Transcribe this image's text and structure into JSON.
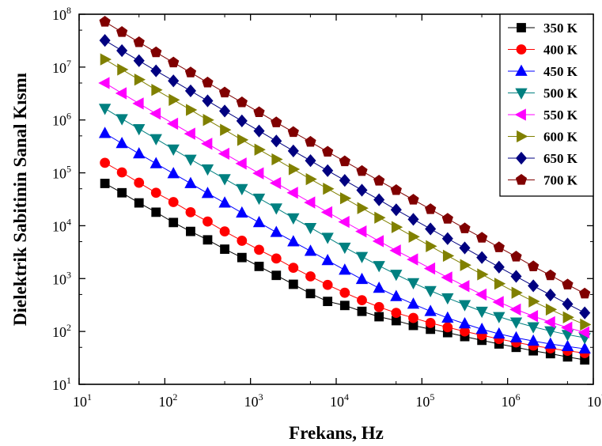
{
  "chart_data": {
    "type": "scatter",
    "title": "",
    "xlabel": "Frekans, Hz",
    "ylabel": "Dielektrik Sabitinin Sanal Kısmı",
    "x_scale": "log",
    "y_scale": "log",
    "xlim": [
      10,
      10000000
    ],
    "ylim": [
      10,
      100000000
    ],
    "x_ticks": [
      {
        "base": "10",
        "exp": "1"
      },
      {
        "base": "10",
        "exp": "2"
      },
      {
        "base": "10",
        "exp": "3"
      },
      {
        "base": "10",
        "exp": "4"
      },
      {
        "base": "10",
        "exp": "5"
      },
      {
        "base": "10",
        "exp": "6"
      },
      {
        "base": "10",
        "exp": "7"
      }
    ],
    "y_ticks": [
      {
        "base": "10",
        "exp": "1"
      },
      {
        "base": "10",
        "exp": "2"
      },
      {
        "base": "10",
        "exp": "3"
      },
      {
        "base": "10",
        "exp": "4"
      },
      {
        "base": "10",
        "exp": "5"
      },
      {
        "base": "10",
        "exp": "6"
      },
      {
        "base": "10",
        "exp": "7"
      },
      {
        "base": "10",
        "exp": "8"
      }
    ],
    "legend_position": "top-right",
    "x": [
      20,
      31.6,
      50,
      79,
      126,
      200,
      316,
      500,
      794,
      1259,
      2000,
      3162,
      5012,
      7943,
      12589,
      19953,
      31623,
      50119,
      79433,
      125893,
      199526,
      316228,
      501187,
      794328,
      1258925,
      1995262,
      3162278,
      5011872,
      7943282,
      12589254
    ],
    "series": [
      {
        "name": "350 K",
        "marker": "square",
        "color": "#000000",
        "values": [
          63000,
          42000,
          27000,
          18000,
          11500,
          7800,
          5400,
          3600,
          2500,
          1700,
          1150,
          780,
          520,
          370,
          310,
          240,
          190,
          160,
          130,
          110,
          95,
          80,
          68,
          58,
          50,
          43,
          38,
          33,
          29,
          26
        ]
      },
      {
        "name": "400 K",
        "marker": "circle",
        "color": "#ff0000",
        "values": [
          155000,
          102000,
          65000,
          42000,
          28000,
          18000,
          12000,
          7800,
          5200,
          3500,
          2400,
          1600,
          1100,
          760,
          540,
          390,
          290,
          225,
          180,
          145,
          120,
          100,
          85,
          72,
          62,
          54,
          48,
          43,
          39,
          36
        ]
      },
      {
        "name": "450 K",
        "marker": "triangle-up",
        "color": "#0000ff",
        "values": [
          560000,
          360000,
          230000,
          150000,
          97000,
          63000,
          41000,
          27000,
          17500,
          11500,
          7500,
          5000,
          3300,
          2200,
          1450,
          970,
          660,
          460,
          330,
          240,
          180,
          140,
          110,
          90,
          76,
          66,
          58,
          52,
          47,
          44
        ]
      },
      {
        "name": "500 K",
        "marker": "triangle-down",
        "color": "#008080",
        "values": [
          1650000,
          1050000,
          680000,
          440000,
          280000,
          180000,
          118000,
          77000,
          50000,
          33000,
          21500,
          14000,
          9200,
          6000,
          3900,
          2600,
          1750,
          1200,
          830,
          590,
          430,
          320,
          240,
          190,
          150,
          122,
          102,
          87,
          76,
          68
        ]
      },
      {
        "name": "550 K",
        "marker": "triangle-left",
        "color": "#ff00ff",
        "values": [
          5000000,
          3200000,
          2050000,
          1320000,
          850000,
          550000,
          355000,
          230000,
          150000,
          98000,
          64000,
          42000,
          27500,
          18000,
          11800,
          7800,
          5100,
          3400,
          2300,
          1550,
          1050,
          720,
          500,
          360,
          260,
          195,
          150,
          118,
          96,
          80
        ]
      },
      {
        "name": "600 K",
        "marker": "triangle-right",
        "color": "#808000",
        "values": [
          14000000,
          9000000,
          5800000,
          3700000,
          2400000,
          1550000,
          1000000,
          650000,
          420000,
          275000,
          180000,
          117000,
          76000,
          50000,
          33000,
          21500,
          14200,
          9400,
          6200,
          4100,
          2700,
          1800,
          1200,
          800,
          540,
          370,
          260,
          185,
          135,
          100
        ]
      },
      {
        "name": "650 K",
        "marker": "diamond",
        "color": "#000080",
        "values": [
          32000000,
          20500000,
          13200000,
          8500000,
          5500000,
          3550000,
          2300000,
          1480000,
          960000,
          620000,
          400000,
          260000,
          170000,
          110000,
          72000,
          47000,
          31000,
          20000,
          13200,
          8700,
          5700,
          3800,
          2500,
          1650,
          1100,
          730,
          490,
          330,
          225,
          155
        ]
      },
      {
        "name": "700 K",
        "marker": "pentagon",
        "color": "#800000",
        "values": [
          72000000,
          46000000,
          29500000,
          19000000,
          12200000,
          7900000,
          5100000,
          3300000,
          2150000,
          1400000,
          900000,
          590000,
          385000,
          250000,
          165000,
          108000,
          71000,
          47000,
          31000,
          20500,
          13500,
          8900,
          5900,
          3900,
          2600,
          1700,
          1150,
          770,
          520,
          350
        ]
      }
    ]
  }
}
